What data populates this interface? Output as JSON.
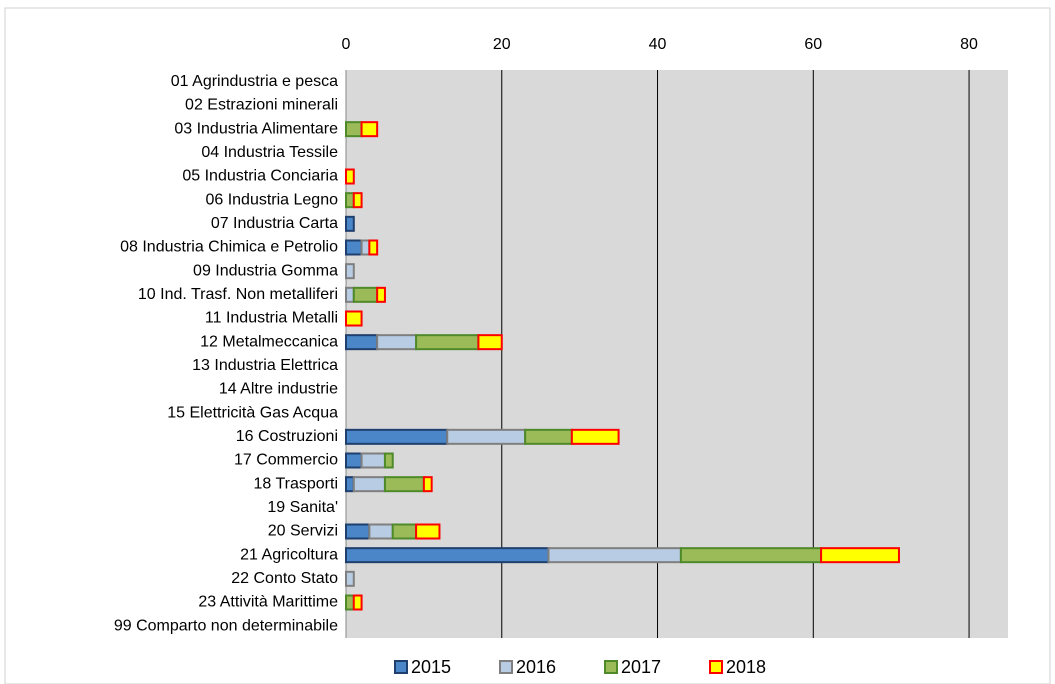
{
  "chart_data": {
    "type": "stacked-bar",
    "orientation": "horizontal",
    "categories": [
      "01 Agrindustria e pesca",
      "02 Estrazioni minerali",
      "03 Industria Alimentare",
      "04 Industria Tessile",
      "05 Industria Conciaria",
      "06 Industria Legno",
      "07 Industria Carta",
      "08 Industria Chimica e Petrolio",
      "09 Industria Gomma",
      "10 Ind. Trasf. Non metalliferi",
      "11 Industria Metalli",
      "12 Metalmeccanica",
      "13 Industria Elettrica",
      "14 Altre industrie",
      "15 Elettricità Gas Acqua",
      "16 Costruzioni",
      "17 Commercio",
      "18 Trasporti",
      "19 Sanita'",
      "20 Servizi",
      "21 Agricoltura",
      "22 Conto Stato",
      "23 Attività Marittime",
      "99 Comparto non determinabile"
    ],
    "series": [
      {
        "name": "2015",
        "color": "#4a86c8",
        "border": "#1f3f6e",
        "values": [
          0,
          0,
          0,
          0,
          0,
          0,
          1,
          2,
          0,
          0,
          0,
          4,
          0,
          0,
          0,
          13,
          2,
          1,
          0,
          3,
          26,
          0,
          0,
          0
        ]
      },
      {
        "name": "2016",
        "color": "#b8cce4",
        "border": "#7f7f7f",
        "values": [
          0,
          0,
          0,
          0,
          0,
          0,
          0,
          1,
          1,
          1,
          0,
          5,
          0,
          0,
          0,
          10,
          3,
          4,
          0,
          3,
          17,
          1,
          0,
          0
        ]
      },
      {
        "name": "2017",
        "color": "#9bbb59",
        "border": "#4f8a2a",
        "values": [
          0,
          0,
          2,
          0,
          0,
          1,
          0,
          0,
          0,
          3,
          0,
          8,
          0,
          0,
          0,
          6,
          1,
          5,
          0,
          3,
          18,
          0,
          1,
          0
        ]
      },
      {
        "name": "2018",
        "color": "#ffff00",
        "border": "#ff0000",
        "values": [
          0,
          0,
          2,
          0,
          1,
          1,
          0,
          1,
          0,
          1,
          2,
          3,
          0,
          0,
          0,
          6,
          0,
          1,
          0,
          3,
          10,
          0,
          1,
          0
        ]
      }
    ],
    "xlim": [
      0,
      85
    ],
    "xticks": [
      0,
      20,
      40,
      60,
      80
    ],
    "grid": true,
    "legend": "bottom"
  }
}
